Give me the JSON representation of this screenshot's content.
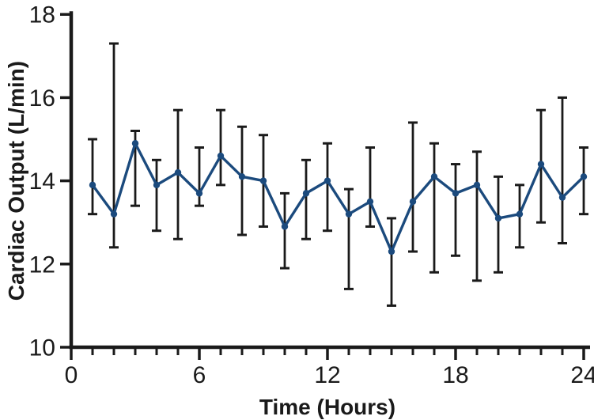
{
  "figure": {
    "background": "#ffffff",
    "text_color": "#1a1a1a"
  },
  "chart_data": {
    "type": "line",
    "title": "",
    "xlabel": "Time (Hours)",
    "ylabel": "Cardiac Output (L/min)",
    "xlim": [
      0,
      24
    ],
    "ylim": [
      10,
      18
    ],
    "xticks_major": [
      0,
      6,
      12,
      18,
      24
    ],
    "xticks_minor": [
      1,
      2,
      3,
      4,
      5,
      7,
      8,
      9,
      10,
      11,
      13,
      14,
      15,
      16,
      17,
      19,
      20,
      21,
      22,
      23
    ],
    "yticks": [
      10,
      12,
      14,
      16,
      18
    ],
    "grid": false,
    "legend": "none",
    "axis_color": "#1a1a1a",
    "series": [
      {
        "name": "Cardiac Output",
        "color": "#1b4a7d",
        "marker": "circle",
        "error_bar_color": "#1a1a1a",
        "x": [
          1,
          2,
          3,
          4,
          5,
          6,
          7,
          8,
          9,
          10,
          11,
          12,
          13,
          14,
          15,
          16,
          17,
          18,
          19,
          20,
          21,
          22,
          23,
          24
        ],
        "y": [
          13.9,
          13.2,
          14.9,
          13.9,
          14.2,
          13.7,
          14.6,
          14.1,
          14.0,
          12.9,
          13.7,
          14.0,
          13.2,
          13.5,
          12.3,
          13.5,
          14.1,
          13.7,
          13.9,
          13.1,
          13.2,
          14.4,
          13.6,
          14.1
        ],
        "error_top": [
          15.0,
          17.3,
          15.2,
          14.5,
          15.7,
          14.8,
          15.7,
          15.3,
          15.1,
          13.7,
          14.5,
          14.9,
          13.8,
          14.8,
          13.1,
          15.4,
          14.9,
          14.4,
          14.7,
          14.1,
          13.9,
          15.7,
          16.0,
          14.8
        ],
        "error_bottom": [
          13.2,
          12.4,
          13.4,
          12.8,
          12.6,
          13.4,
          13.9,
          12.7,
          12.9,
          11.9,
          12.6,
          12.8,
          11.4,
          12.9,
          11.0,
          12.3,
          11.8,
          12.2,
          11.6,
          11.8,
          12.4,
          13.0,
          12.5,
          13.2
        ]
      }
    ]
  }
}
